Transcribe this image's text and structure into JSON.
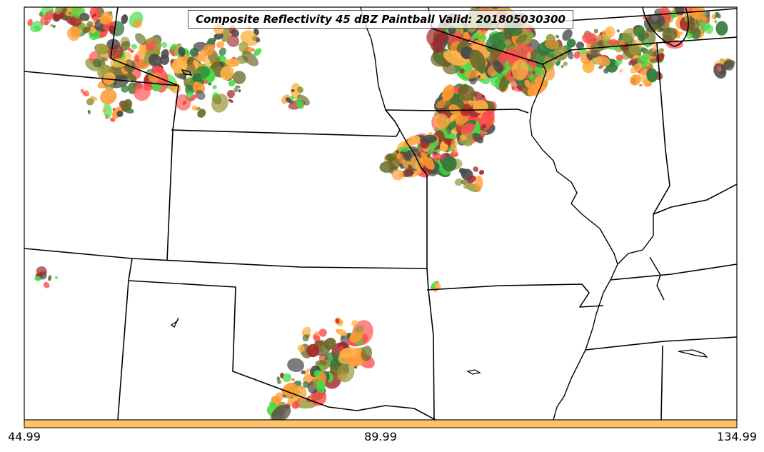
{
  "title": "Composite Reflectivity 45 dBZ Paintball Valid: 201805030300",
  "colorbar": {
    "color": "#ffc266",
    "tick_labels": [
      "44.99",
      "89.99",
      "134.99"
    ]
  },
  "palette": {
    "red": "#ff4d4d",
    "orange": "#ff9933",
    "light_orange": "#ffb347",
    "dark_red": "#a32a2a",
    "olive": "#9a9a3c",
    "dark_olive": "#6b6b2a",
    "green": "#44dd44",
    "dark_green": "#2f7a3a",
    "dark_gray": "#4a4a4a",
    "state_lines": "#000000"
  }
}
